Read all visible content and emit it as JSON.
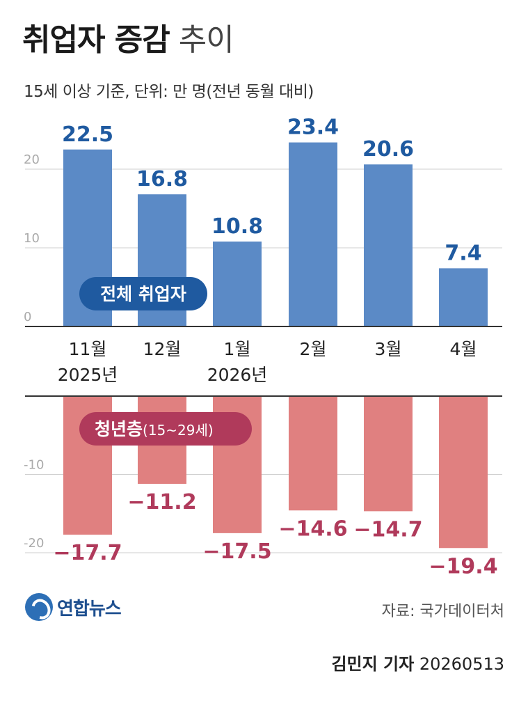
{
  "header": {
    "title_bold": "취업자 증감",
    "title_light": "추이",
    "subtitle": "15세 이상 기준, 단위: 만 명(전년 동월 대비)"
  },
  "chart_data": {
    "type": "bar",
    "categories": [
      "11월\n2025년",
      "12월",
      "1월\n2026년",
      "2월",
      "3월",
      "4월"
    ],
    "series": [
      {
        "name": "전체 취업자",
        "values": [
          22.5,
          16.8,
          10.8,
          23.4,
          20.6,
          7.4
        ],
        "color": "#5b8ac6",
        "label_color": "#1f5aa0"
      },
      {
        "name": "청년층(15~29세)",
        "values": [
          -17.7,
          -11.2,
          -17.5,
          -14.6,
          -14.7,
          -19.4
        ],
        "color": "#e08080",
        "label_color": "#b03a5b"
      }
    ],
    "upper_panel": {
      "ylim": [
        0,
        20
      ],
      "yticks": [
        "0",
        "10",
        "20"
      ]
    },
    "lower_panel": {
      "yticks": [
        "-10",
        "-20"
      ]
    },
    "legend": [
      {
        "text": "전체 취업자",
        "bg": "#1f5aa0"
      },
      {
        "text": "청년층",
        "sub": "(15~29세)",
        "bg": "#b03a5b"
      }
    ],
    "grid": true
  },
  "footer": {
    "logo_text": "연합뉴스",
    "source": "자료: 국가데이터처",
    "reporter": "김민지 기자",
    "date": "20260513"
  }
}
